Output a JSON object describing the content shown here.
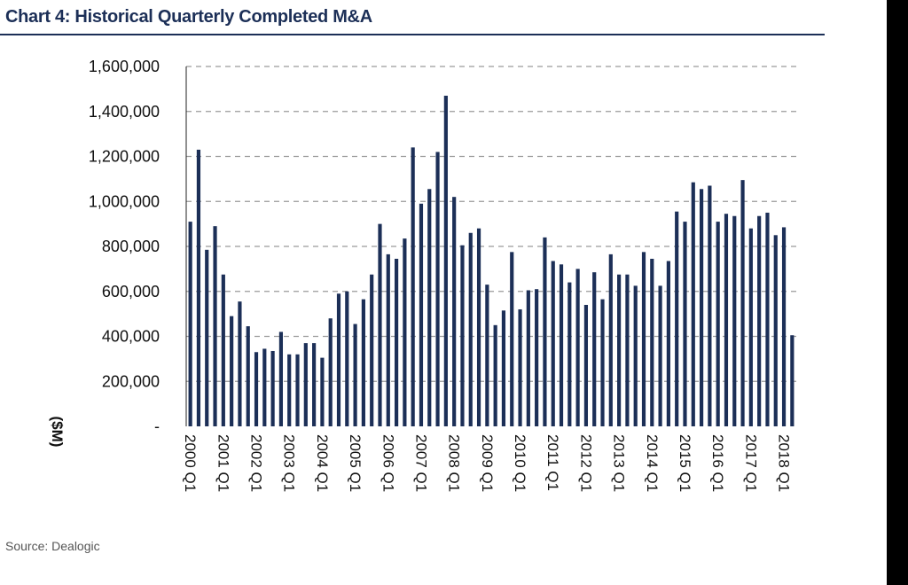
{
  "title": "Chart 4: Historical Quarterly Completed M&A",
  "source": "Source: Dealogic",
  "colors": {
    "bar": "#1c2f57",
    "title": "#1c2f57",
    "grid": "#9a9a9a"
  },
  "chart_data": {
    "type": "bar",
    "title": "Chart 4: Historical Quarterly Completed M&A",
    "ylabel": "($M)",
    "xlabel": "",
    "ylim": [
      0,
      1600000
    ],
    "yticks": [
      "-",
      "200,000",
      "400,000",
      "600,000",
      "800,000",
      "1,000,000",
      "1,200,000",
      "1,400,000",
      "1,600,000"
    ],
    "xtick_labels": [
      "2000 Q1",
      "2001 Q1",
      "2002 Q1",
      "2003 Q1",
      "2004 Q1",
      "2005 Q1",
      "2006 Q1",
      "2007 Q1",
      "2008 Q1",
      "2009 Q1",
      "2010 Q1",
      "2011 Q1",
      "2012 Q1",
      "2013 Q1",
      "2014 Q1",
      "2015 Q1",
      "2016 Q1",
      "2017 Q1",
      "2018 Q1"
    ],
    "grid": true,
    "series": [
      {
        "values": [
          910000,
          1230000,
          785000,
          890000,
          675000,
          490000,
          555000,
          445000,
          330000,
          345000,
          335000,
          420000,
          320000,
          320000,
          370000,
          370000,
          305000,
          480000,
          590000,
          600000,
          455000,
          565000,
          675000,
          900000,
          765000,
          745000,
          835000,
          1240000,
          990000,
          1055000,
          1220000,
          1470000,
          1020000,
          805000,
          860000,
          880000,
          630000,
          450000,
          515000,
          775000,
          520000,
          605000,
          610000,
          840000,
          735000,
          720000,
          640000,
          700000,
          540000,
          685000,
          565000,
          765000,
          675000,
          675000,
          625000,
          775000,
          745000,
          625000,
          735000,
          955000,
          910000,
          1085000,
          1055000,
          1070000,
          910000,
          945000,
          935000,
          1095000,
          880000,
          935000,
          950000,
          850000,
          885000,
          405000
        ]
      }
    ]
  }
}
